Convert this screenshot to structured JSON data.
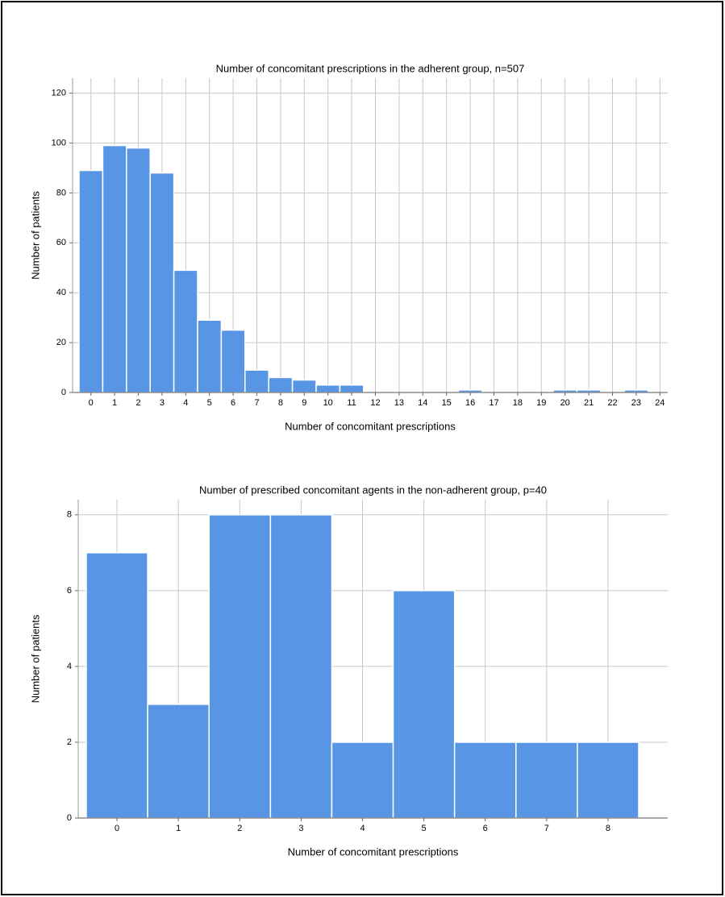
{
  "chart_data": [
    {
      "type": "bar",
      "title": "Number of concomitant prescriptions in the adherent group, n=507",
      "x_label": "Number of concomitant prescriptions",
      "y_label": "Number of patients",
      "categories": [
        "0",
        "1",
        "2",
        "3",
        "4",
        "5",
        "6",
        "7",
        "8",
        "9",
        "10",
        "11",
        "12",
        "13",
        "14",
        "15",
        "16",
        "17",
        "18",
        "19",
        "20",
        "21",
        "22",
        "23",
        "24"
      ],
      "values": [
        89,
        99,
        98,
        88,
        49,
        29,
        25,
        9,
        6,
        5,
        3,
        3,
        0,
        0,
        0,
        0,
        1,
        0,
        0,
        0,
        1,
        1,
        0,
        1,
        0
      ],
      "color": "#5896e5",
      "ylim": [
        0,
        126
      ],
      "yticks": [
        0,
        20,
        40,
        60,
        80,
        100,
        120
      ],
      "grid": true
    },
    {
      "type": "bar",
      "title": "Number of prescribed concomitant agents in the non-adherent group, p=40",
      "x_label": "Number of concomitant prescriptions",
      "y_label": "Number of patients",
      "categories": [
        "0",
        "1",
        "2",
        "3",
        "4",
        "5",
        "6",
        "7",
        "8"
      ],
      "values": [
        7,
        3,
        8,
        8,
        2,
        6,
        2,
        2,
        2
      ],
      "color": "#5896e5",
      "ylim": [
        0,
        8.4
      ],
      "yticks": [
        0,
        2,
        4,
        6,
        8
      ],
      "grid": true
    }
  ]
}
